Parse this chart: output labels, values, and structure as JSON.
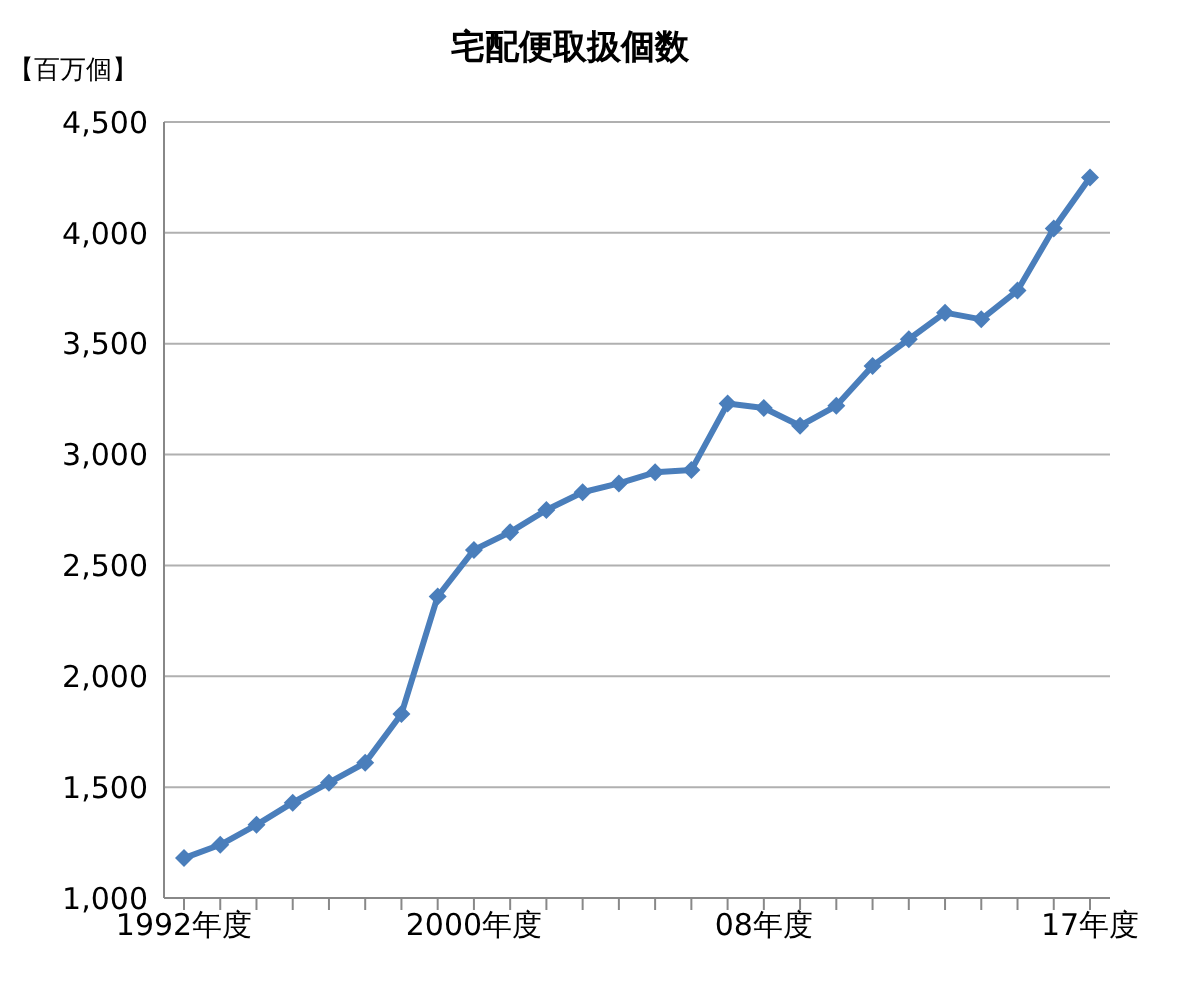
{
  "chart_data": {
    "type": "line",
    "title": "宅配便取扱個数",
    "ylabel": "【百万個】",
    "categories": [
      "1992年度",
      null,
      null,
      null,
      null,
      null,
      null,
      null,
      "2000年度",
      null,
      null,
      null,
      null,
      null,
      null,
      null,
      "08年度",
      null,
      null,
      null,
      null,
      null,
      null,
      null,
      null,
      "17年度"
    ],
    "series": [
      {
        "color": "#4a7ebb",
        "values": [
          1180,
          1240,
          1330,
          1430,
          1520,
          1610,
          1830,
          2360,
          2570,
          2650,
          2750,
          2830,
          2870,
          2920,
          2930,
          3230,
          3210,
          3130,
          3220,
          3400,
          3520,
          3640,
          3610,
          3740,
          4020,
          4250
        ]
      }
    ],
    "ylim": [
      1000,
      4500
    ],
    "yticks": [
      {
        "value": 1000,
        "label": "1,000"
      },
      {
        "value": 1500,
        "label": "1,500"
      },
      {
        "value": 2000,
        "label": "2,000"
      },
      {
        "value": 2500,
        "label": "2,500"
      },
      {
        "value": 3000,
        "label": "3,000"
      },
      {
        "value": 3500,
        "label": "3,500"
      },
      {
        "value": 4000,
        "label": "4,000"
      },
      {
        "value": 4500,
        "label": "4,500"
      }
    ],
    "grid": "y",
    "marker": "diamond",
    "line_style": "solid",
    "legend": false
  }
}
